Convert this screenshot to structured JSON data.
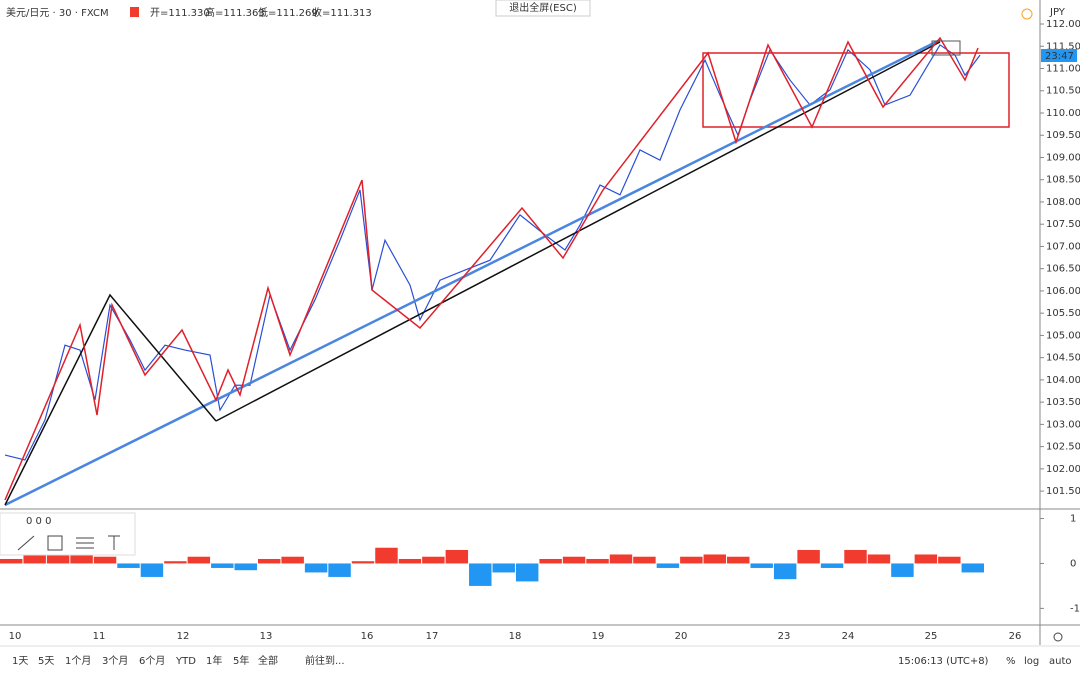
{
  "header": {
    "symbol": "美元/日元 · 30 · FXCM",
    "open": "开=111.330",
    "high": "高=111.363",
    "low": "低=111.269",
    "close": "收=111.313",
    "exit_fullscreen": "退出全屏(ESC)",
    "currency": "JPY",
    "countdown": "23:47"
  },
  "chart_data": {
    "type": "line",
    "color": "#2a4fd6",
    "values": [
      102.31,
      102.2,
      103.1,
      104.78,
      104.67,
      103.55,
      105.68,
      104.9,
      104.22,
      104.78,
      104.67,
      104.56,
      103.32,
      103.88,
      103.88,
      105.91,
      104.67,
      105.8,
      107.14,
      108.27,
      106.02,
      107.14,
      106.13,
      105.35,
      106.24,
      106.47,
      106.69,
      107.71,
      107.26,
      106.92,
      107.48,
      108.38,
      108.16,
      109.17,
      108.94,
      110.07,
      111.19,
      110.4,
      109.5,
      110.29,
      111.42,
      110.74,
      110.18,
      110.52,
      111.42,
      110.97,
      110.18,
      110.4,
      110.97,
      111.53,
      111.3,
      110.85,
      111.3
    ],
    "ylim": [
      101.12,
      112.54
    ],
    "yticks": [
      {
        "value": 101.5,
        "label": "101.500"
      },
      {
        "value": 102,
        "label": "102.000"
      },
      {
        "value": 102.5,
        "label": "102.500"
      },
      {
        "value": 103,
        "label": "103.000"
      },
      {
        "value": 103.5,
        "label": "103.500"
      },
      {
        "value": 104,
        "label": "104.000"
      },
      {
        "value": 104.5,
        "label": "104.500"
      },
      {
        "value": 105,
        "label": "105.000"
      },
      {
        "value": 105.5,
        "label": "105.500"
      },
      {
        "value": 106,
        "label": "106.000"
      },
      {
        "value": 106.5,
        "label": "106.500"
      },
      {
        "value": 107,
        "label": "107.000"
      },
      {
        "value": 107.5,
        "label": "107.500"
      },
      {
        "value": 108,
        "label": "108.000"
      },
      {
        "value": 108.5,
        "label": "108.500"
      },
      {
        "value": 109,
        "label": "109.000"
      },
      {
        "value": 109.5,
        "label": "109.500"
      },
      {
        "value": 110,
        "label": "110.000"
      },
      {
        "value": 110.5,
        "label": "110.500"
      },
      {
        "value": 111,
        "label": "111.000"
      },
      {
        "value": 111.5,
        "label": "111.500"
      },
      {
        "value": 112,
        "label": "112.000"
      }
    ],
    "xticks": [
      "10",
      "11",
      "12",
      "13",
      "16",
      "17",
      "18",
      "19",
      "20",
      "23",
      "24",
      "25",
      "26"
    ]
  },
  "indicator": {
    "type": "bar",
    "legend": "0 0 0",
    "values": [
      0.1,
      0.3,
      0.2,
      0.25,
      0.15,
      -0.1,
      -0.3,
      0.05,
      0.15,
      -0.1,
      -0.15,
      0.1,
      0.15,
      -0.2,
      -0.3,
      0.05,
      0.35,
      0.1,
      0.15,
      0.3,
      -0.5,
      -0.2,
      -0.4,
      0.1,
      0.15,
      0.1,
      0.2,
      0.15,
      -0.1,
      0.15,
      0.2,
      0.15,
      -0.1,
      -0.35,
      0.3,
      -0.1,
      0.3,
      0.2,
      -0.3,
      0.2,
      0.15,
      -0.2
    ],
    "ylim": [
      -1.37,
      1.19
    ],
    "yticks": [
      1,
      0,
      -1
    ],
    "up_color": "#f23b2f",
    "down_color": "#2196f3"
  },
  "toolbar": {
    "ranges": [
      "1天",
      "5天",
      "1个月",
      "3个月",
      "6个月",
      "YTD",
      "1年",
      "5年",
      "全部"
    ],
    "goto": "前往到...",
    "time": "15:06:13 (UTC+8)",
    "percent": "%",
    "log": "log",
    "auto": "auto"
  }
}
